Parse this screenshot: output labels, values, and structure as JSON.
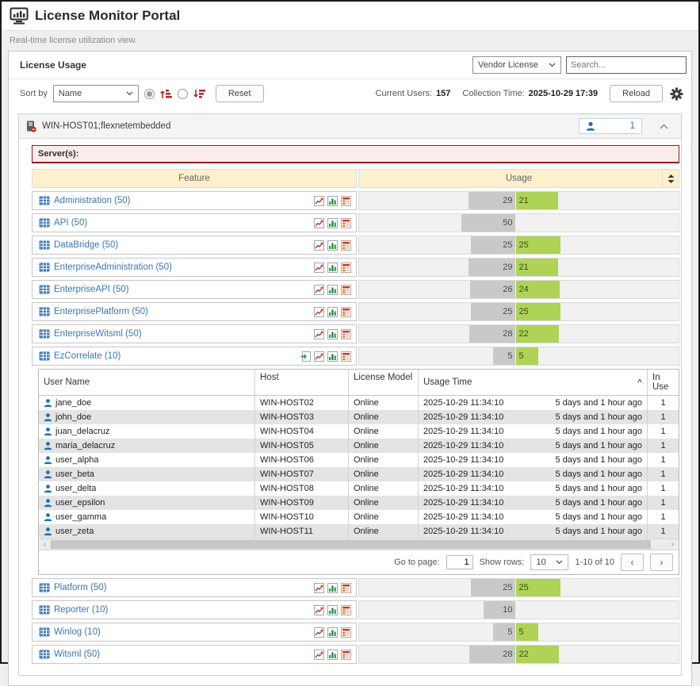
{
  "app": {
    "title": "License Monitor Portal",
    "subtitle": "Real-time license utilization view."
  },
  "panel": {
    "title": "License Usage",
    "vendor_filter": "Vendor License",
    "search_placeholder": "Search..."
  },
  "toolbar": {
    "sort_by_label": "Sort by",
    "sort_field": "Name",
    "reset_label": "Reset",
    "current_users_label": "Current Users:",
    "current_users": "157",
    "collection_time_label": "Collection Time:",
    "collection_time": "2025-10-29 17:39",
    "reload_label": "Reload"
  },
  "host_group": {
    "name": "WIN-HOST01;flexnetembedded",
    "user_count": "1",
    "servers_label": "Server(s):"
  },
  "feature_table": {
    "feature_header": "Feature",
    "usage_header": "Usage"
  },
  "features": [
    {
      "name": "Administration (50)",
      "gray_value": 29,
      "green_value": 21,
      "expanded": false
    },
    {
      "name": "API (50)",
      "gray_value": 50,
      "green_value": null,
      "expanded": false
    },
    {
      "name": "DataBridge (50)",
      "gray_value": 25,
      "green_value": 25,
      "expanded": false
    },
    {
      "name": "EnterpriseAdministration (50)",
      "gray_value": 29,
      "green_value": 21,
      "expanded": false
    },
    {
      "name": "EnterpriseAPI (50)",
      "gray_value": 26,
      "green_value": 24,
      "expanded": false
    },
    {
      "name": "EnterprisePlatform (50)",
      "gray_value": 25,
      "green_value": 25,
      "expanded": false
    },
    {
      "name": "EnterpriseWitsml (50)",
      "gray_value": 28,
      "green_value": 22,
      "expanded": false
    },
    {
      "name": "EzCorrelate (10)",
      "gray_value": 5,
      "green_value": 5,
      "expanded": true
    },
    {
      "name": "Platform (50)",
      "gray_value": 25,
      "green_value": 25,
      "expanded": false
    },
    {
      "name": "Reporter (10)",
      "gray_value": 10,
      "green_value": null,
      "expanded": false
    },
    {
      "name": "Winlog (10)",
      "gray_value": 5,
      "green_value": 5,
      "expanded": false
    },
    {
      "name": "Witsml (50)",
      "gray_value": 28,
      "green_value": 22,
      "expanded": false
    }
  ],
  "user_table": {
    "headers": {
      "user": "User Name",
      "host": "Host",
      "model": "License Model",
      "time": "Usage Time",
      "in_use": "In Use"
    },
    "rows": [
      {
        "user": "jane_doe",
        "host": "WIN-HOST02",
        "model": "Online",
        "time": "2025-10-29 11:34:10",
        "ago": "5 days and 1 hour ago",
        "in_use": "1"
      },
      {
        "user": "john_doe",
        "host": "WIN-HOST03",
        "model": "Online",
        "time": "2025-10-29 11:34:10",
        "ago": "5 days and 1 hour ago",
        "in_use": "1"
      },
      {
        "user": "juan_delacruz",
        "host": "WIN-HOST04",
        "model": "Online",
        "time": "2025-10-29 11:34:10",
        "ago": "5 days and 1 hour ago",
        "in_use": "1"
      },
      {
        "user": "maria_delacruz",
        "host": "WIN-HOST05",
        "model": "Online",
        "time": "2025-10-29 11:34:10",
        "ago": "5 days and 1 hour ago",
        "in_use": "1"
      },
      {
        "user": "user_alpha",
        "host": "WIN-HOST06",
        "model": "Online",
        "time": "2025-10-29 11:34:10",
        "ago": "5 days and 1 hour ago",
        "in_use": "1"
      },
      {
        "user": "user_beta",
        "host": "WIN-HOST07",
        "model": "Online",
        "time": "2025-10-29 11:34:10",
        "ago": "5 days and 1 hour ago",
        "in_use": "1"
      },
      {
        "user": "user_delta",
        "host": "WIN-HOST08",
        "model": "Online",
        "time": "2025-10-29 11:34:10",
        "ago": "5 days and 1 hour ago",
        "in_use": "1"
      },
      {
        "user": "user_epsilon",
        "host": "WIN-HOST09",
        "model": "Online",
        "time": "2025-10-29 11:34:10",
        "ago": "5 days and 1 hour ago",
        "in_use": "1"
      },
      {
        "user": "user_gamma",
        "host": "WIN-HOST10",
        "model": "Online",
        "time": "2025-10-29 11:34:10",
        "ago": "5 days and 1 hour ago",
        "in_use": "1"
      },
      {
        "user": "user_zeta",
        "host": "WIN-HOST11",
        "model": "Online",
        "time": "2025-10-29 11:34:10",
        "ago": "5 days and 1 hour ago",
        "in_use": "1"
      }
    ]
  },
  "pagination": {
    "go_to_page_label": "Go to page:",
    "page": "1",
    "show_rows_label": "Show rows:",
    "rows_per_page": "10",
    "range_text": "1-10 of 10"
  },
  "colors": {
    "accent_blue": "#3b76b4",
    "bar_gray": "#c9c9c9",
    "bar_green": "#aed356",
    "server_alert_border": "#8e1b1b",
    "feature_header_bg": "#fcf0cd"
  }
}
